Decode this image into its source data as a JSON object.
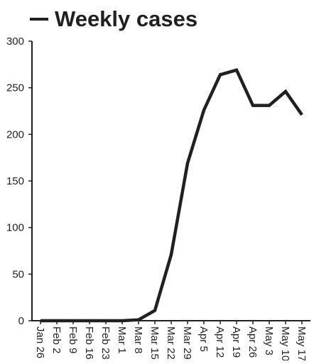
{
  "chart_data": {
    "type": "line",
    "x": [
      "Jan 26",
      "Feb 2",
      "Feb 9",
      "Feb 16",
      "Feb 23",
      "Mar 1",
      "Mar 8",
      "Mar 15",
      "Mar 22",
      "Mar 29",
      "Apr 5",
      "Apr 12",
      "Apr 19",
      "Apr 26",
      "May 3",
      "May 10",
      "May 17"
    ],
    "series": [
      {
        "name": "Weekly cases",
        "values": [
          0,
          0,
          0,
          0,
          0,
          0,
          1,
          11,
          71,
          169,
          226,
          264,
          269,
          231,
          231,
          246,
          221
        ],
        "color": "#231f20"
      }
    ],
    "ylim": [
      0,
      300
    ],
    "yticks": [
      0,
      50,
      100,
      150,
      200,
      250,
      300
    ],
    "legend": "top-left",
    "grid": false
  }
}
